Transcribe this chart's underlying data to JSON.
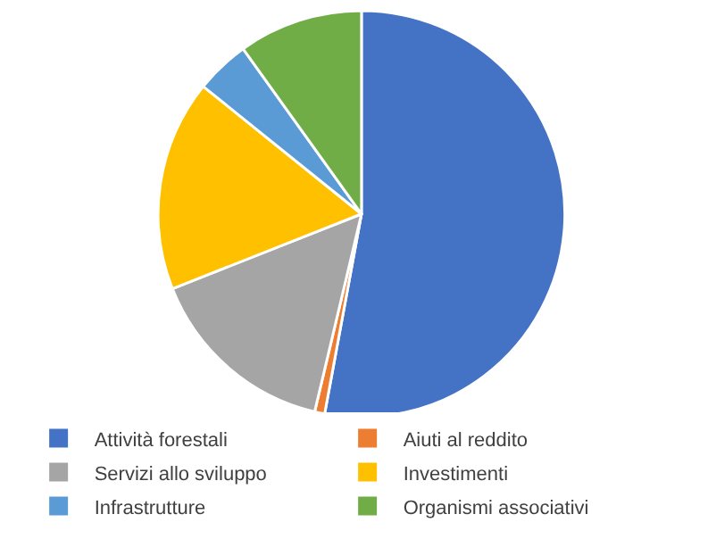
{
  "chart_data": {
    "type": "pie",
    "categories": [
      "Attività forestali",
      "Aiuti al reddito",
      "Servizi allo sviluppo",
      "Investimenti",
      "Infrastrutture",
      "Organismi associativi"
    ],
    "values": [
      52.9,
      0.8,
      15.3,
      16.8,
      4.3,
      9.9
    ],
    "colors": [
      "#4472c4",
      "#ed7d31",
      "#a5a5a5",
      "#ffc000",
      "#5b9bd5",
      "#70ad47"
    ],
    "legend": "bottom"
  }
}
